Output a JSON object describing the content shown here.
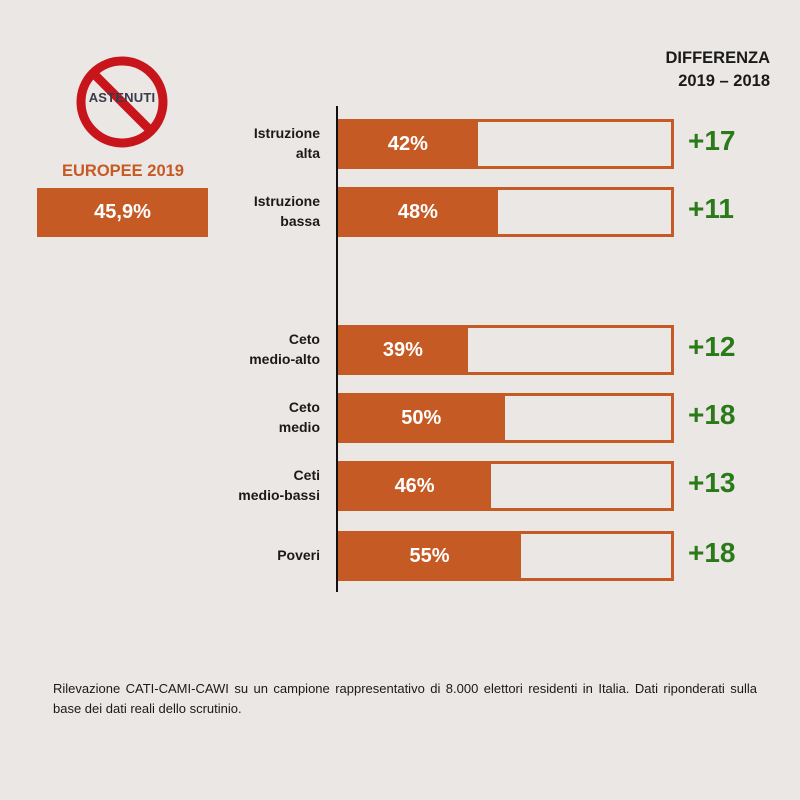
{
  "logo": {
    "text": "ASTENUTI"
  },
  "elections_label": "EUROPEE 2019",
  "overall_value": "45,9%",
  "diff_header": {
    "title": "DIFFERENZA",
    "years": "2019 – 2018"
  },
  "chart_data": {
    "type": "bar",
    "categories": [
      [
        "Istruzione",
        "alta"
      ],
      [
        "Istruzione",
        "bassa"
      ],
      [
        "Ceto",
        "medio-alto"
      ],
      [
        "Ceto",
        "medio"
      ],
      [
        "Ceti",
        "medio-bassi"
      ],
      [
        "Poveri"
      ]
    ],
    "values": [
      42,
      48,
      39,
      50,
      46,
      55
    ],
    "value_labels": [
      "42%",
      "48%",
      "39%",
      "50%",
      "46%",
      "55%"
    ],
    "differences": [
      "+17",
      "+11",
      "+12",
      "+18",
      "+13",
      "+18"
    ],
    "xlim": [
      0,
      100
    ],
    "colors": {
      "bar": "#c65a25",
      "difference": "#2a7a1a"
    }
  },
  "footnote": "Rilevazione CATI-CAMI-CAWI su un campione rappresentativo di 8.000 elettori residenti in Italia. Dati riponderati sulla base dei dati reali dello scrutinio."
}
